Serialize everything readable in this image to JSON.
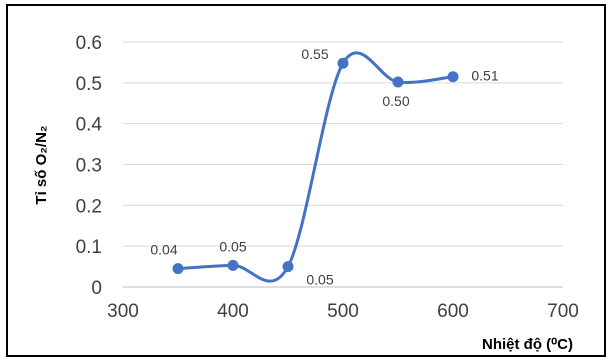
{
  "chart_data": {
    "type": "line",
    "xlabel": "Nhiệt độ (⁰C)",
    "ylabel": "Tỉ số O₂/N₂",
    "xlim": [
      300,
      700
    ],
    "ylim": [
      0,
      0.6
    ],
    "x_ticks": [
      "300",
      "400",
      "500",
      "600",
      "700"
    ],
    "y_ticks": [
      "0",
      "0.1",
      "0.2",
      "0.3",
      "0.4",
      "0.5",
      "0.6"
    ],
    "grid": "horizontal",
    "smooth": true,
    "series": [
      {
        "x": [
          350,
          400,
          450,
          500,
          550,
          600
        ],
        "y": [
          0.045,
          0.053,
          0.05,
          0.548,
          0.502,
          0.515
        ],
        "data_labels": [
          "0.04",
          "0.05",
          "0.05",
          "0.55",
          "0.50",
          "0.51"
        ]
      }
    ],
    "colors": {
      "series": "#4472C4",
      "grid": "#D9D9D9",
      "axis": "#BFBFBF",
      "frame": "#000000"
    }
  }
}
